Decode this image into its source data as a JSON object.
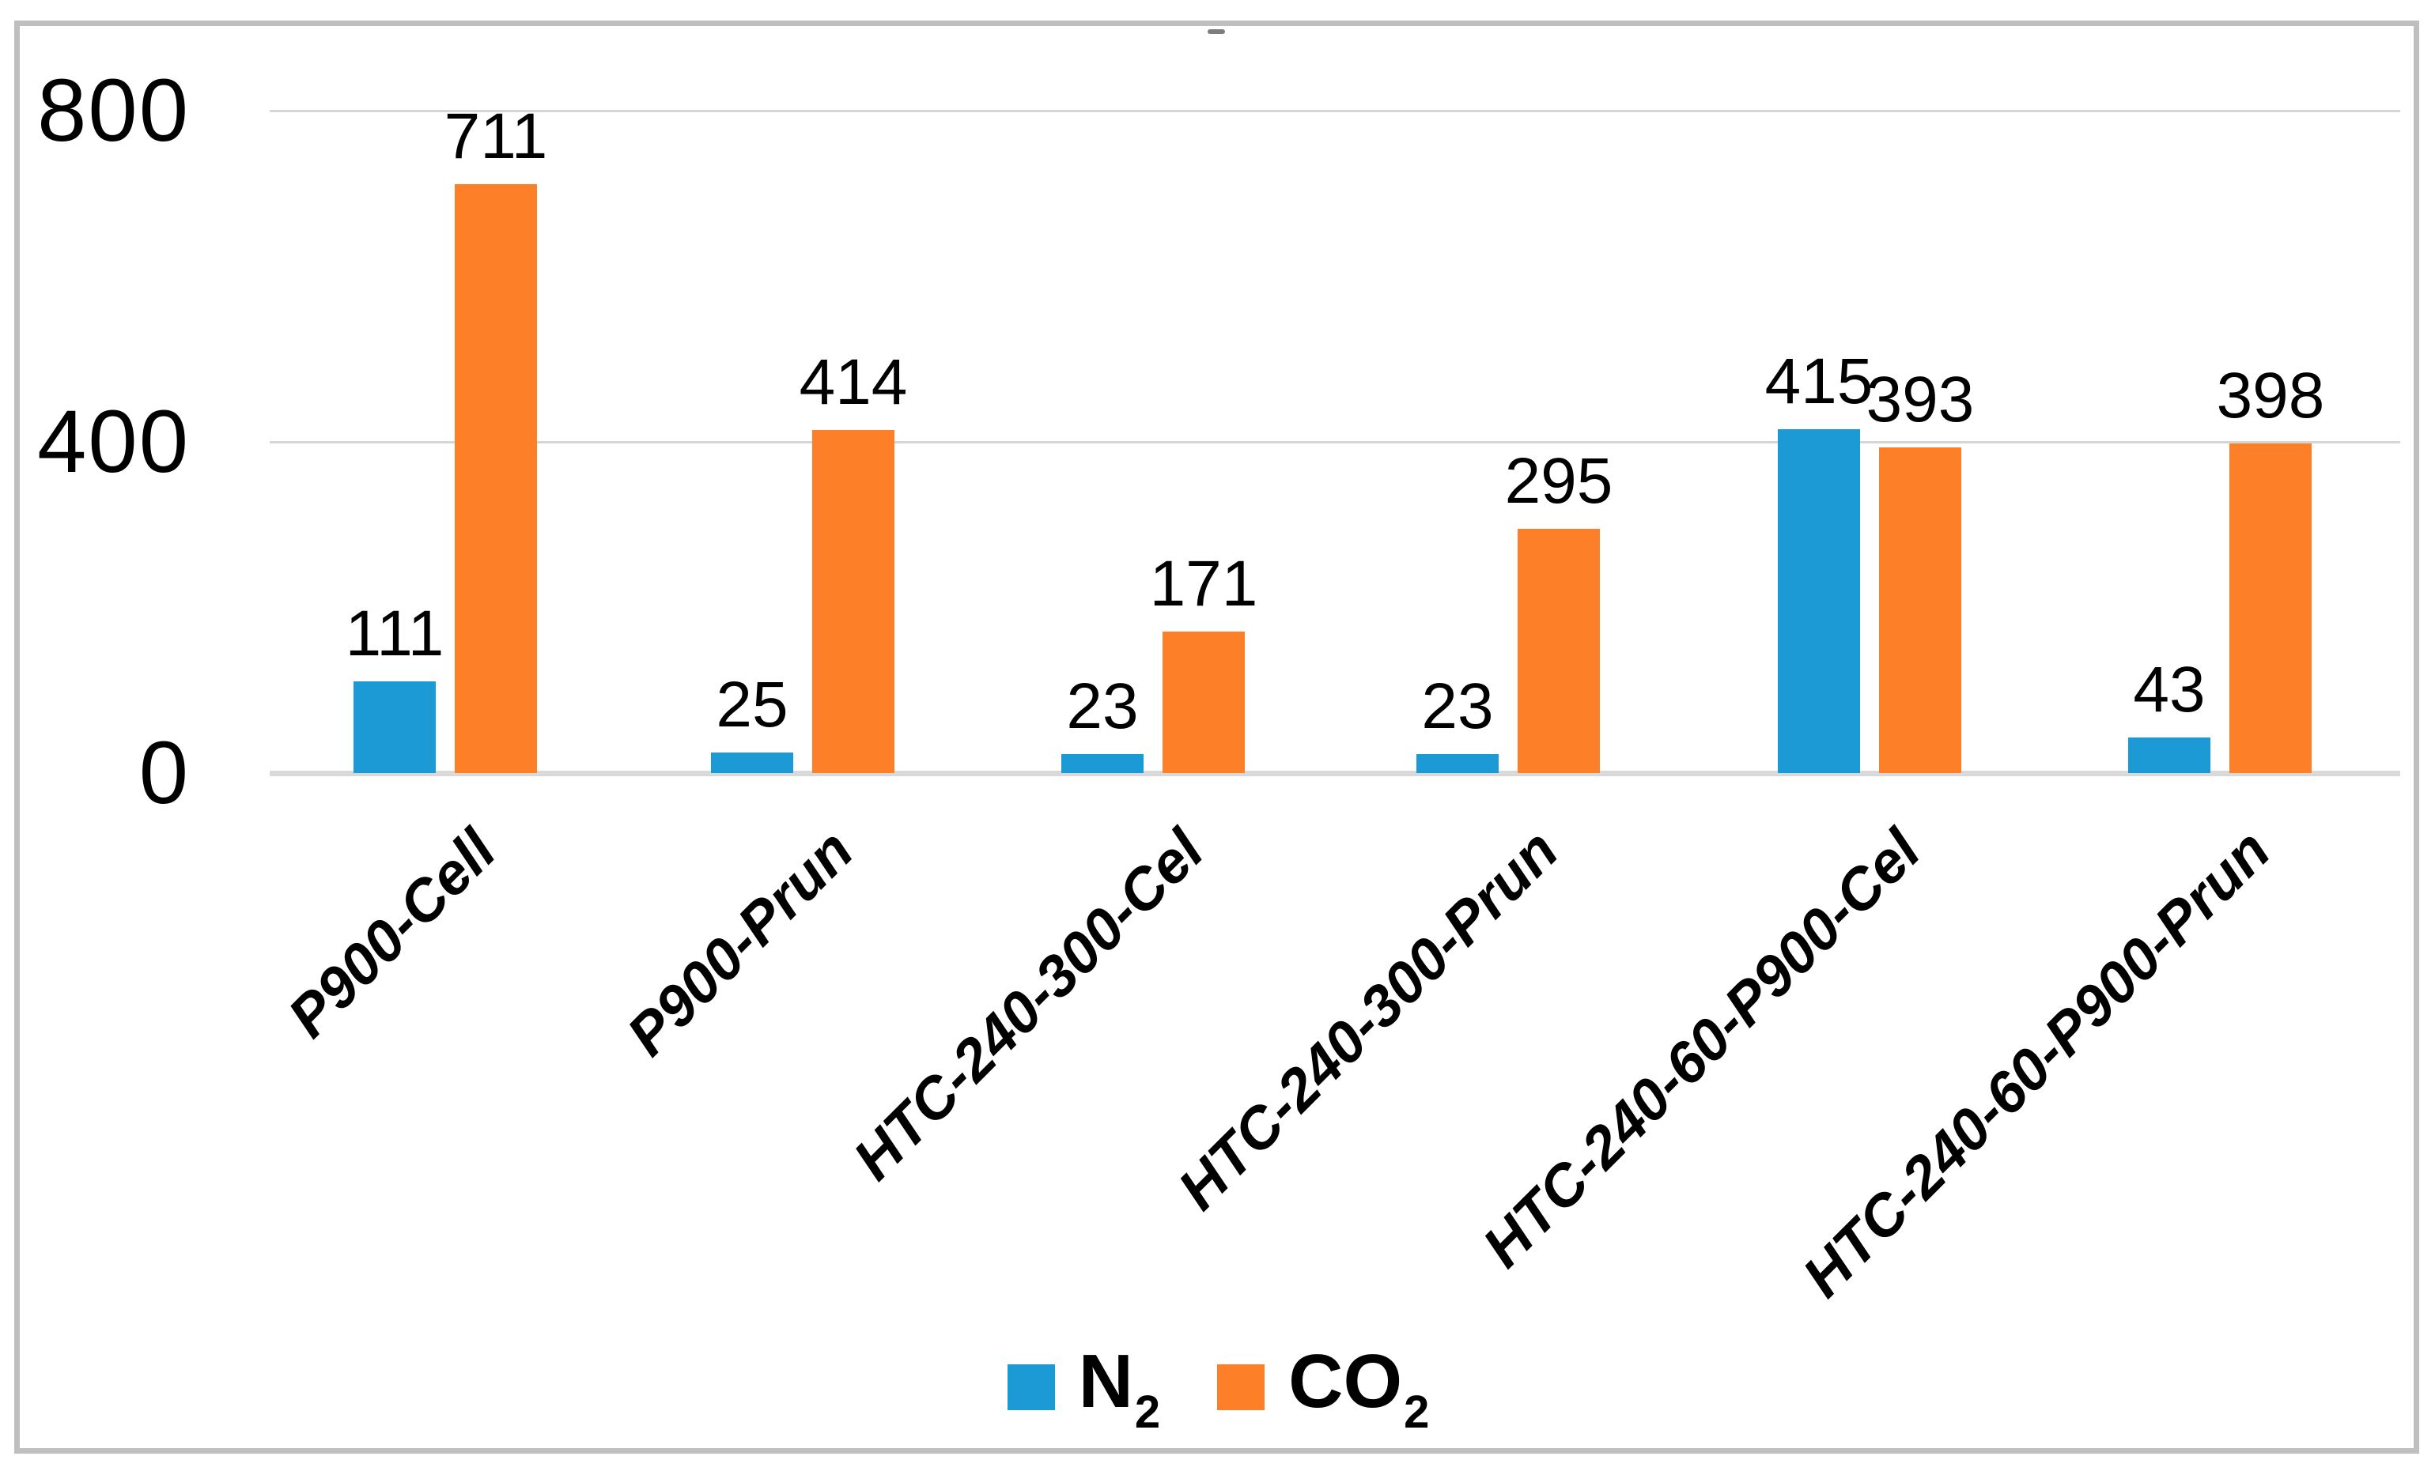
{
  "chart_data": {
    "type": "bar",
    "title": "",
    "categories": [
      "P900-Cell",
      "P900-Prun",
      "HTC-240-300-Cel",
      "HTC-240-300-Prun",
      "HTC-240-60-P900-Cel",
      "HTC-240-60-P900-Prun"
    ],
    "series": [
      {
        "name": "N2",
        "legend_base": "N",
        "legend_sub": "2",
        "color": "#1B9AD6",
        "values": [
          111,
          25,
          23,
          23,
          415,
          43
        ]
      },
      {
        "name": "CO2",
        "legend_base": "CO",
        "legend_sub": "2",
        "color": "#FD7F28",
        "values": [
          711,
          414,
          171,
          295,
          393,
          398
        ]
      }
    ],
    "yticks": [
      0,
      400,
      800
    ],
    "ylim": [
      0,
      800
    ],
    "grid": true,
    "value_labels": true,
    "legend_position": "bottom"
  },
  "colors": {
    "background": "#FFFFFF",
    "frame_border": "#BFBFBF",
    "grid_line": "#D6D6D6",
    "axis_line": "#D9D9D9",
    "text": "#000000",
    "artifact_mark": "#7D7D7D"
  }
}
